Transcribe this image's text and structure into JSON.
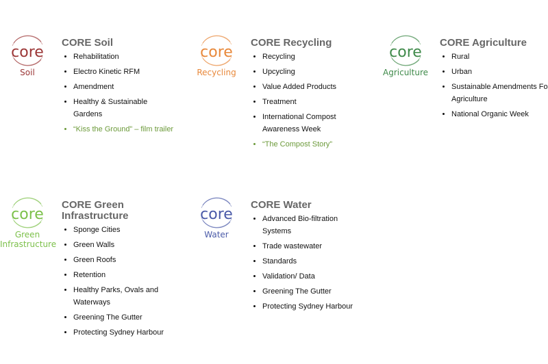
{
  "cards": [
    {
      "id": "soil",
      "title": "CORE Soil",
      "logo_caption": "Soil",
      "color": "#9b3636",
      "items": [
        {
          "label": "Rehabilitation"
        },
        {
          "label": "Electro Kinetic RFM"
        },
        {
          "label": "Amendment"
        },
        {
          "label": "Healthy & Sustainable Gardens"
        },
        {
          "label": "“Kiss the Ground” – film trailer",
          "link": true
        }
      ]
    },
    {
      "id": "recycling",
      "title": "CORE Recycling",
      "logo_caption": "Recycling",
      "color": "#e8883a",
      "items": [
        {
          "label": "Recycling"
        },
        {
          "label": "Upcycling"
        },
        {
          "label": "Value Added Products"
        },
        {
          "label": "Treatment"
        },
        {
          "label": "International Compost Awareness Week"
        },
        {
          "label": "“The Compost Story”",
          "link": true
        }
      ]
    },
    {
      "id": "agriculture",
      "title": "CORE Agriculture",
      "logo_caption": "Agriculture",
      "color": "#3f8a4a",
      "items": [
        {
          "label": "Rural"
        },
        {
          "label": "Urban"
        },
        {
          "label": "Sustainable Amendments For Agriculture"
        },
        {
          "label": "National Organic Week"
        }
      ]
    },
    {
      "id": "green-infrastructure",
      "title": "CORE Green Infrastructure",
      "logo_caption": "Green Infrastructure",
      "color": "#7cc04a",
      "items": [
        {
          "label": "Sponge Cities"
        },
        {
          "label": "Green Walls"
        },
        {
          "label": "Green Roofs"
        },
        {
          "label": "Retention"
        },
        {
          "label": "Healthy Parks, Ovals and Waterways"
        },
        {
          "label": "Greening The Gutter"
        },
        {
          "label": "Protecting Sydney Harbour"
        }
      ]
    },
    {
      "id": "water",
      "title": "CORE Water",
      "logo_caption": "Water",
      "color": "#4a5aa8",
      "items": [
        {
          "label": "Advanced Bio-filtration Systems"
        },
        {
          "label": "Trade wastewater"
        },
        {
          "label": "Standards"
        },
        {
          "label": "Validation/ Data"
        },
        {
          "label": "Greening The Gutter"
        },
        {
          "label": "Protecting Sydney Harbour"
        }
      ]
    }
  ],
  "logo_word": "core"
}
